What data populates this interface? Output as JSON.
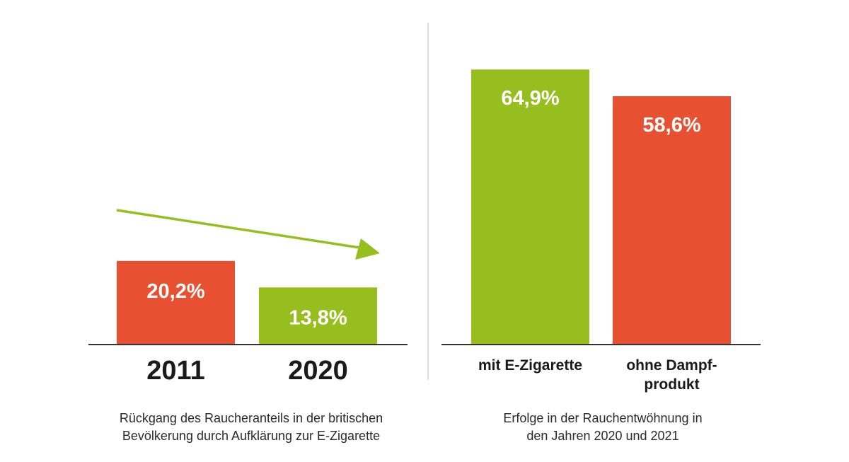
{
  "colors": {
    "green": "#96BE1E",
    "red": "#E75132",
    "axis": "#333333",
    "divider": "#d6d6d6"
  },
  "chart_data": [
    {
      "type": "bar",
      "categories": [
        "2011",
        "2020"
      ],
      "values": [
        20.2,
        13.8
      ],
      "value_labels": [
        "20,2%",
        "13,8%"
      ],
      "bar_colors": [
        "red",
        "green"
      ],
      "trend_arrow": "down",
      "caption_lines": [
        "Rückgang des Raucheranteils in der britischen",
        "Bevölkerung durch Aufklärung zur E-Zigarette"
      ]
    },
    {
      "type": "bar",
      "categories": [
        "mit E-Zigarette",
        "ohne Dampf-\nprodukt"
      ],
      "category_lines": [
        [
          "mit E-Zigarette"
        ],
        [
          "ohne Dampf-",
          "produkt"
        ]
      ],
      "values": [
        64.9,
        58.6
      ],
      "value_labels": [
        "64,9%",
        "58,6%"
      ],
      "bar_colors": [
        "green",
        "red"
      ],
      "caption_lines": [
        "Erfolge in der Rauchentwöhnung in",
        "den Jahren 2020 und 2021"
      ]
    }
  ]
}
